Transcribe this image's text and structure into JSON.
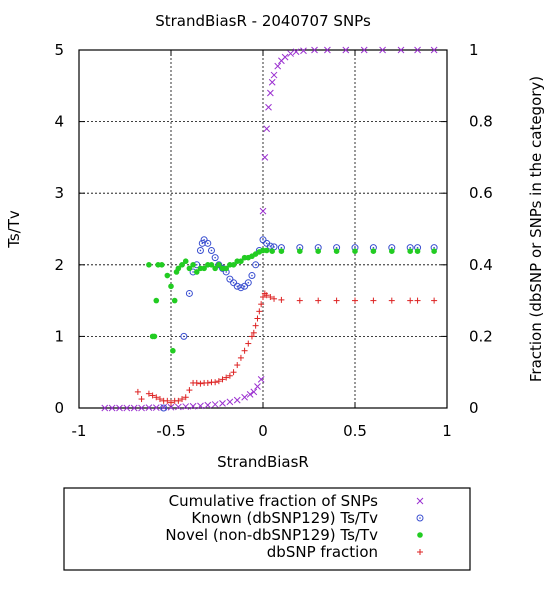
{
  "chart_data": {
    "type": "scatter",
    "title": "StrandBiasR - 2040707 SNPs",
    "xlabel": "StrandBiasR",
    "ylabel": "Ts/Tv",
    "y2label": "Fraction (dbSNP or SNPs in the category)",
    "xlim": [
      -1,
      1
    ],
    "ylim": [
      0,
      5
    ],
    "y2lim": [
      0,
      1
    ],
    "grid": true,
    "legend_position": "below",
    "x_ticks": [
      "-1",
      "-0.5",
      "0",
      "0.5",
      "1"
    ],
    "y_ticks": [
      "0",
      "1",
      "2",
      "3",
      "4",
      "5"
    ],
    "y2_ticks": [
      "0",
      "0.2",
      "0.4",
      "0.6",
      "0.8",
      "1"
    ],
    "series": [
      {
        "name": "Cumulative fraction of SNPs",
        "axis": "right",
        "marker": "x",
        "color": "#9b30d0",
        "points": [
          [
            -0.86,
            0
          ],
          [
            -0.82,
            0
          ],
          [
            -0.78,
            0
          ],
          [
            -0.74,
            0
          ],
          [
            -0.7,
            0
          ],
          [
            -0.66,
            0
          ],
          [
            -0.62,
            0.001
          ],
          [
            -0.58,
            0.001
          ],
          [
            -0.54,
            0.002
          ],
          [
            -0.5,
            0.002
          ],
          [
            -0.46,
            0.003
          ],
          [
            -0.42,
            0.004
          ],
          [
            -0.38,
            0.005
          ],
          [
            -0.34,
            0.006
          ],
          [
            -0.3,
            0.008
          ],
          [
            -0.26,
            0.01
          ],
          [
            -0.22,
            0.013
          ],
          [
            -0.18,
            0.017
          ],
          [
            -0.14,
            0.022
          ],
          [
            -0.1,
            0.03
          ],
          [
            -0.07,
            0.038
          ],
          [
            -0.05,
            0.045
          ],
          [
            -0.03,
            0.06
          ],
          [
            -0.01,
            0.08
          ],
          [
            0.0,
            0.55
          ],
          [
            0.01,
            0.7
          ],
          [
            0.02,
            0.78
          ],
          [
            0.03,
            0.84
          ],
          [
            0.04,
            0.88
          ],
          [
            0.05,
            0.91
          ],
          [
            0.06,
            0.93
          ],
          [
            0.08,
            0.955
          ],
          [
            0.1,
            0.97
          ],
          [
            0.12,
            0.98
          ],
          [
            0.15,
            0.99
          ],
          [
            0.18,
            0.995
          ],
          [
            0.22,
            0.998
          ],
          [
            0.28,
            1
          ],
          [
            0.35,
            1
          ],
          [
            0.45,
            1
          ],
          [
            0.55,
            1
          ],
          [
            0.65,
            1
          ],
          [
            0.75,
            1
          ],
          [
            0.84,
            1
          ],
          [
            0.93,
            1
          ]
        ]
      },
      {
        "name": "Known (dbSNP129) Ts/Tv",
        "axis": "left",
        "marker": "circle",
        "color": "#3a4fd0",
        "points": [
          [
            -0.54,
            0
          ],
          [
            -0.43,
            1
          ],
          [
            -0.4,
            1.6
          ],
          [
            -0.38,
            1.9
          ],
          [
            -0.36,
            2.0
          ],
          [
            -0.34,
            2.2
          ],
          [
            -0.33,
            2.3
          ],
          [
            -0.32,
            2.35
          ],
          [
            -0.3,
            2.3
          ],
          [
            -0.28,
            2.2
          ],
          [
            -0.26,
            2.1
          ],
          [
            -0.24,
            2.0
          ],
          [
            -0.22,
            1.95
          ],
          [
            -0.2,
            1.9
          ],
          [
            -0.18,
            1.8
          ],
          [
            -0.16,
            1.75
          ],
          [
            -0.14,
            1.7
          ],
          [
            -0.12,
            1.68
          ],
          [
            -0.1,
            1.7
          ],
          [
            -0.08,
            1.75
          ],
          [
            -0.06,
            1.85
          ],
          [
            -0.04,
            2.0
          ],
          [
            -0.02,
            2.2
          ],
          [
            0.0,
            2.35
          ],
          [
            0.02,
            2.3
          ],
          [
            0.04,
            2.26
          ],
          [
            0.06,
            2.25
          ],
          [
            0.1,
            2.24
          ],
          [
            0.2,
            2.24
          ],
          [
            0.3,
            2.24
          ],
          [
            0.4,
            2.24
          ],
          [
            0.5,
            2.24
          ],
          [
            0.6,
            2.24
          ],
          [
            0.7,
            2.24
          ],
          [
            0.8,
            2.24
          ],
          [
            0.84,
            2.24
          ],
          [
            0.93,
            2.24
          ]
        ]
      },
      {
        "name": "Novel (non-dbSNP129) Ts/Tv",
        "axis": "left",
        "marker": "filled-circle",
        "color": "#22cc22",
        "points": [
          [
            -0.62,
            2
          ],
          [
            -0.6,
            1
          ],
          [
            -0.59,
            1
          ],
          [
            -0.58,
            1.5
          ],
          [
            -0.57,
            2
          ],
          [
            -0.55,
            2
          ],
          [
            -0.52,
            1.85
          ],
          [
            -0.5,
            1.7
          ],
          [
            -0.49,
            0.8
          ],
          [
            -0.48,
            1.5
          ],
          [
            -0.47,
            1.9
          ],
          [
            -0.46,
            1.95
          ],
          [
            -0.44,
            2.0
          ],
          [
            -0.42,
            2.05
          ],
          [
            -0.4,
            1.95
          ],
          [
            -0.38,
            2.0
          ],
          [
            -0.36,
            1.9
          ],
          [
            -0.34,
            1.95
          ],
          [
            -0.32,
            1.95
          ],
          [
            -0.3,
            2.0
          ],
          [
            -0.28,
            2.0
          ],
          [
            -0.26,
            1.95
          ],
          [
            -0.24,
            2.0
          ],
          [
            -0.22,
            1.95
          ],
          [
            -0.2,
            1.95
          ],
          [
            -0.18,
            2.0
          ],
          [
            -0.16,
            2.0
          ],
          [
            -0.14,
            2.05
          ],
          [
            -0.12,
            2.05
          ],
          [
            -0.1,
            2.1
          ],
          [
            -0.08,
            2.1
          ],
          [
            -0.06,
            2.12
          ],
          [
            -0.04,
            2.15
          ],
          [
            -0.02,
            2.18
          ],
          [
            0.0,
            2.2
          ],
          [
            0.02,
            2.2
          ],
          [
            0.05,
            2.19
          ],
          [
            0.1,
            2.19
          ],
          [
            0.2,
            2.19
          ],
          [
            0.3,
            2.19
          ],
          [
            0.4,
            2.19
          ],
          [
            0.5,
            2.19
          ],
          [
            0.6,
            2.19
          ],
          [
            0.7,
            2.19
          ],
          [
            0.8,
            2.19
          ],
          [
            0.84,
            2.19
          ],
          [
            0.93,
            2.19
          ]
        ]
      },
      {
        "name": "dbSNP fraction",
        "axis": "right",
        "marker": "plus",
        "color": "#dd2222",
        "points": [
          [
            -0.68,
            0.045
          ],
          [
            -0.66,
            0.025
          ],
          [
            -0.62,
            0.04
          ],
          [
            -0.6,
            0.035
          ],
          [
            -0.58,
            0.03
          ],
          [
            -0.56,
            0.025
          ],
          [
            -0.54,
            0.02
          ],
          [
            -0.52,
            0.02
          ],
          [
            -0.5,
            0.015
          ],
          [
            -0.48,
            0.02
          ],
          [
            -0.46,
            0.02
          ],
          [
            -0.44,
            0.025
          ],
          [
            -0.42,
            0.03
          ],
          [
            -0.4,
            0.05
          ],
          [
            -0.38,
            0.07
          ],
          [
            -0.36,
            0.07
          ],
          [
            -0.34,
            0.068
          ],
          [
            -0.32,
            0.07
          ],
          [
            -0.3,
            0.07
          ],
          [
            -0.28,
            0.072
          ],
          [
            -0.26,
            0.072
          ],
          [
            -0.24,
            0.075
          ],
          [
            -0.22,
            0.08
          ],
          [
            -0.2,
            0.085
          ],
          [
            -0.18,
            0.09
          ],
          [
            -0.16,
            0.1
          ],
          [
            -0.14,
            0.12
          ],
          [
            -0.12,
            0.14
          ],
          [
            -0.1,
            0.16
          ],
          [
            -0.08,
            0.18
          ],
          [
            -0.06,
            0.2
          ],
          [
            -0.05,
            0.21
          ],
          [
            -0.04,
            0.23
          ],
          [
            -0.03,
            0.25
          ],
          [
            -0.02,
            0.27
          ],
          [
            -0.01,
            0.29
          ],
          [
            0.0,
            0.31
          ],
          [
            0.01,
            0.32
          ],
          [
            0.02,
            0.315
          ],
          [
            0.04,
            0.31
          ],
          [
            0.06,
            0.305
          ],
          [
            0.1,
            0.302
          ],
          [
            0.2,
            0.3
          ],
          [
            0.3,
            0.3
          ],
          [
            0.4,
            0.3
          ],
          [
            0.5,
            0.3
          ],
          [
            0.6,
            0.3
          ],
          [
            0.7,
            0.3
          ],
          [
            0.8,
            0.3
          ],
          [
            0.84,
            0.3
          ],
          [
            0.93,
            0.3
          ]
        ]
      }
    ]
  }
}
